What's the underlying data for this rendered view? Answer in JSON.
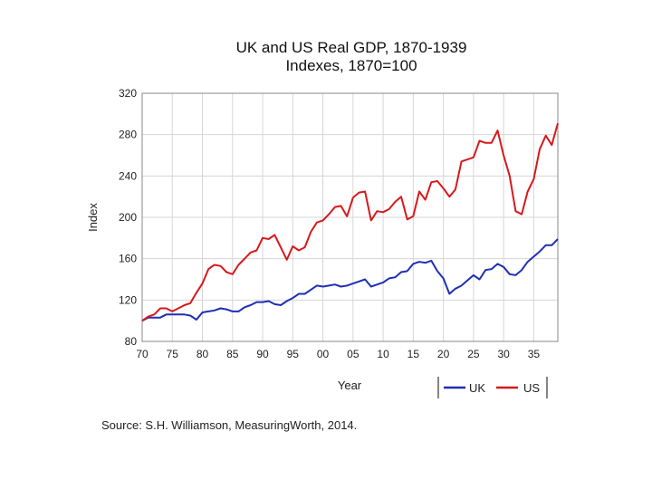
{
  "chart_data": {
    "type": "line",
    "title": "UK and US Real GDP, 1870-1939",
    "subtitle": "Indexes, 1870=100",
    "xlabel": "Year",
    "ylabel": "Index",
    "xlim": [
      1870,
      1939
    ],
    "ylim": [
      80,
      320
    ],
    "grid": true,
    "legend_position": "bottom-right",
    "x_ticks": [
      {
        "value": 1870,
        "label": "70"
      },
      {
        "value": 1875,
        "label": "75"
      },
      {
        "value": 1880,
        "label": "80"
      },
      {
        "value": 1885,
        "label": "85"
      },
      {
        "value": 1890,
        "label": "90"
      },
      {
        "value": 1895,
        "label": "95"
      },
      {
        "value": 1900,
        "label": "00"
      },
      {
        "value": 1905,
        "label": "05"
      },
      {
        "value": 1910,
        "label": "10"
      },
      {
        "value": 1915,
        "label": "15"
      },
      {
        "value": 1920,
        "label": "20"
      },
      {
        "value": 1925,
        "label": "25"
      },
      {
        "value": 1930,
        "label": "30"
      },
      {
        "value": 1935,
        "label": "35"
      }
    ],
    "y_ticks": [
      {
        "value": 80,
        "label": "80"
      },
      {
        "value": 120,
        "label": "120"
      },
      {
        "value": 160,
        "label": "160"
      },
      {
        "value": 200,
        "label": "200"
      },
      {
        "value": 240,
        "label": "240"
      },
      {
        "value": 280,
        "label": "280"
      },
      {
        "value": 320,
        "label": "320"
      }
    ],
    "x": [
      1870,
      1871,
      1872,
      1873,
      1874,
      1875,
      1876,
      1877,
      1878,
      1879,
      1880,
      1881,
      1882,
      1883,
      1884,
      1885,
      1886,
      1887,
      1888,
      1889,
      1890,
      1891,
      1892,
      1893,
      1894,
      1895,
      1896,
      1897,
      1898,
      1899,
      1900,
      1901,
      1902,
      1903,
      1904,
      1905,
      1906,
      1907,
      1908,
      1909,
      1910,
      1911,
      1912,
      1913,
      1914,
      1915,
      1916,
      1917,
      1918,
      1919,
      1920,
      1921,
      1922,
      1923,
      1924,
      1925,
      1926,
      1927,
      1928,
      1929,
      1930,
      1931,
      1932,
      1933,
      1934,
      1935,
      1936,
      1937,
      1938,
      1939
    ],
    "series": [
      {
        "name": "UK",
        "color": "#1f2fb4",
        "values": [
          100,
          103,
          103,
          103,
          106,
          106,
          106,
          106,
          105,
          101,
          108,
          109,
          110,
          112,
          111,
          109,
          109,
          113,
          115,
          118,
          118,
          119,
          116,
          115,
          119,
          122,
          126,
          126,
          130,
          134,
          133,
          134,
          135,
          133,
          134,
          136,
          138,
          140,
          133,
          135,
          137,
          141,
          142,
          147,
          148,
          155,
          157,
          156,
          158,
          148,
          141,
          126,
          131,
          134,
          139,
          144,
          140,
          149,
          150,
          155,
          152,
          145,
          144,
          149,
          157,
          162,
          167,
          173,
          173,
          179
        ]
      },
      {
        "name": "US",
        "color": "#d7191c",
        "values": [
          100,
          104,
          106,
          112,
          112,
          109,
          112,
          115,
          117,
          127,
          136,
          150,
          154,
          153,
          147,
          145,
          154,
          160,
          166,
          168,
          180,
          179,
          183,
          171,
          159,
          172,
          168,
          171,
          186,
          195,
          197,
          203,
          210,
          211,
          201,
          219,
          224,
          225,
          197,
          206,
          205,
          208,
          215,
          220,
          198,
          201,
          225,
          217,
          234,
          235,
          228,
          220,
          227,
          254,
          256,
          258,
          274,
          272,
          272,
          284,
          260,
          240,
          206,
          203,
          225,
          237,
          266,
          279,
          270,
          291
        ]
      }
    ],
    "source": "Source: S.H. Williamson, MeasuringWorth, 2014."
  }
}
